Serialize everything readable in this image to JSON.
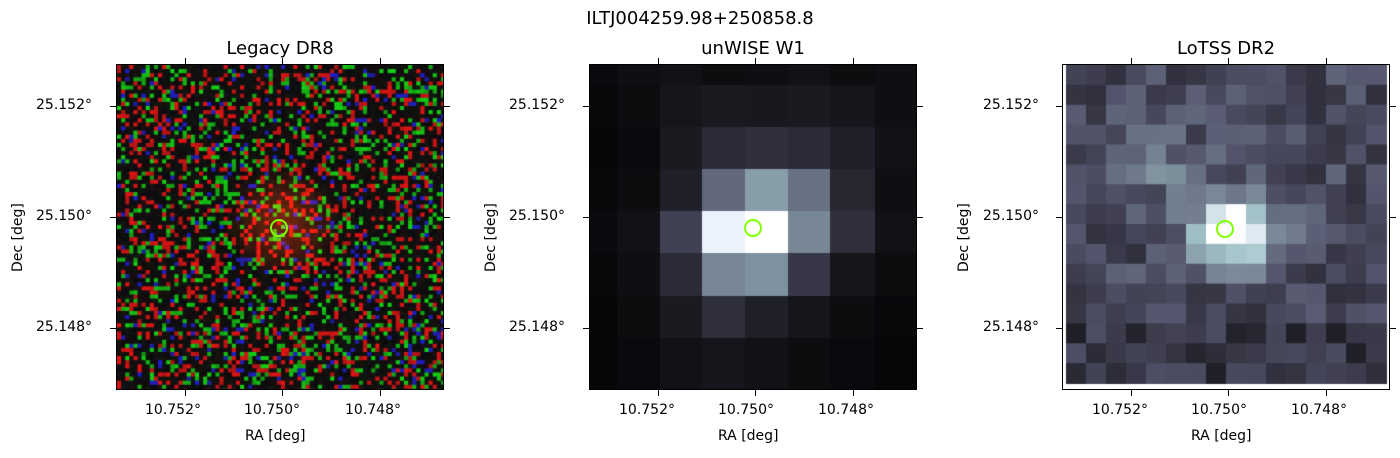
{
  "figure": {
    "title": "ILTJ004259.98+250858.8"
  },
  "panels": [
    {
      "title": "Legacy DR8",
      "xlabel": "RA [deg]",
      "ylabel": "Dec [deg]",
      "xticks": [
        "10.752°",
        "10.750°",
        "10.748°"
      ],
      "yticks": [
        "25.152°",
        "25.150°",
        "25.148°"
      ],
      "colormap": "rgb-noise"
    },
    {
      "title": "unWISE W1",
      "xlabel": "RA [deg]",
      "ylabel": "Dec [deg]",
      "xticks": [
        "10.752°",
        "10.750°",
        "10.748°"
      ],
      "yticks": [
        "25.152°",
        "25.150°",
        "25.148°"
      ],
      "colormap": "bone"
    },
    {
      "title": "LoTSS DR2",
      "xlabel": "RA [deg]",
      "ylabel": "Dec [deg]",
      "xticks": [
        "10.752°",
        "10.750°",
        "10.748°"
      ],
      "yticks": [
        "25.152°",
        "25.150°",
        "25.148°"
      ],
      "colormap": "bone"
    }
  ],
  "colors": {
    "marker": "#7fff00"
  }
}
